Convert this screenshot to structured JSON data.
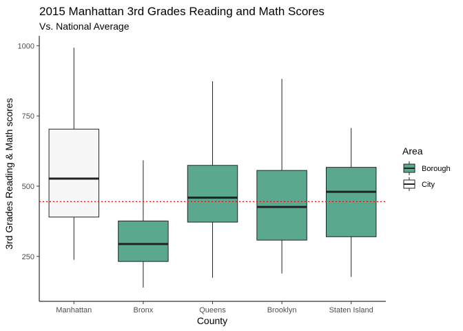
{
  "chart_data": {
    "type": "boxplot",
    "title": "2015 Manhattan 3rd Grades Reading and Math Scores",
    "subtitle": "Vs. National Average",
    "xlabel": "County",
    "ylabel": "3rd Grades Reading & Math scores",
    "ylim": [
      90,
      1035
    ],
    "yticks": [
      250,
      500,
      750,
      1000
    ],
    "categories": [
      "Manhattan",
      "Bronx",
      "Queens",
      "Brooklyn",
      "Staten Island"
    ],
    "boxes": [
      {
        "category": "Manhattan",
        "area": "City",
        "min": 238,
        "q1": 390,
        "median": 527,
        "q3": 703,
        "max": 993
      },
      {
        "category": "Bronx",
        "area": "Borough",
        "min": 139,
        "q1": 232,
        "median": 294,
        "q3": 376,
        "max": 592
      },
      {
        "category": "Queens",
        "area": "Borough",
        "min": 174,
        "q1": 372,
        "median": 459,
        "q3": 574,
        "max": 873
      },
      {
        "category": "Brooklyn",
        "area": "Borough",
        "min": 189,
        "q1": 308,
        "median": 426,
        "q3": 556,
        "max": 882
      },
      {
        "category": "Staten Island",
        "area": "Borough",
        "min": 177,
        "q1": 320,
        "median": 480,
        "q3": 567,
        "max": 707
      }
    ],
    "reference_line": {
      "value": 445,
      "style": "dotted",
      "color": "#ff0000"
    },
    "legend": {
      "title": "Area",
      "placement": "right",
      "entries": [
        {
          "label": "Borough",
          "color": "#5aa98f"
        },
        {
          "label": "City",
          "color": "#f7f7f7"
        }
      ]
    },
    "grid": false
  }
}
